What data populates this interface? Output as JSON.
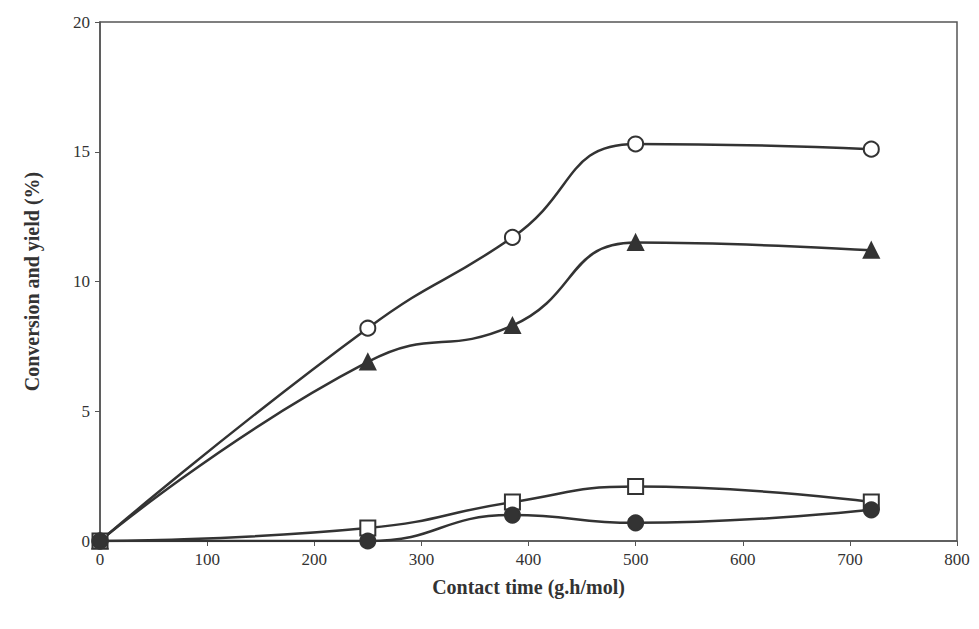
{
  "chart_data": {
    "type": "line",
    "x_label": "Contact time (g.h/mol)",
    "y_label": "Conversion and yield (%)",
    "x": [
      0,
      250,
      385,
      500,
      720
    ],
    "series": [
      {
        "marker": "circle-open",
        "color": "#333333",
        "values": [
          0,
          8.2,
          11.7,
          15.3,
          15.1
        ]
      },
      {
        "marker": "triangle",
        "color": "#333333",
        "values": [
          0,
          6.9,
          8.3,
          11.5,
          11.2
        ]
      },
      {
        "marker": "square-open",
        "color": "#333333",
        "values": [
          0,
          0.5,
          1.5,
          2.1,
          1.5
        ]
      },
      {
        "marker": "circle",
        "color": "#333333",
        "values": [
          0,
          0.0,
          1.0,
          0.7,
          1.2
        ]
      }
    ],
    "xlim": [
      0,
      800
    ],
    "xticks": [
      0,
      100,
      200,
      300,
      400,
      500,
      600,
      700,
      800
    ],
    "ylim": [
      0,
      20
    ],
    "yticks": [
      0,
      5,
      10,
      15,
      20
    ],
    "grid": false
  }
}
